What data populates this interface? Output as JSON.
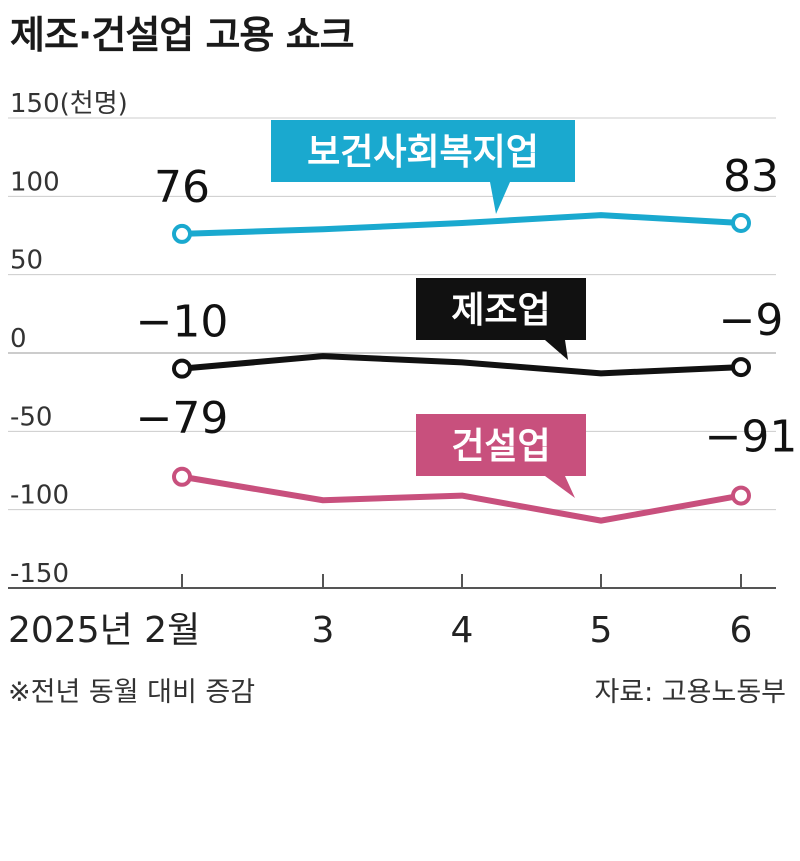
{
  "title": "제조·건설업 고용 쇼크",
  "footnote": "※전년 동월 대비 증감",
  "source": "자료: 고용노동부",
  "chart_data": {
    "type": "line",
    "title": "제조·건설업 고용 쇼크",
    "x": [
      "2025년 2월",
      "3",
      "4",
      "5",
      "6"
    ],
    "ylabel": "(천명)",
    "ylim": [
      -150,
      150
    ],
    "yticks": [
      -150,
      -100,
      -50,
      0,
      50,
      100,
      150
    ],
    "ytick_labels": [
      "-150",
      "-100",
      "-50",
      "0",
      "50",
      "100",
      "150(천명)"
    ],
    "grid": true,
    "series": [
      {
        "name": "보건사회복지업",
        "color": "#1aa9cf",
        "values": [
          76,
          79,
          83,
          88,
          83
        ],
        "end_labels": [
          "76",
          "83"
        ]
      },
      {
        "name": "제조업",
        "color": "#111111",
        "values": [
          -10,
          -2,
          -6,
          -13,
          -9
        ],
        "end_labels": [
          "−10",
          "−9"
        ]
      },
      {
        "name": "건설업",
        "color": "#c8507d",
        "values": [
          -79,
          -94,
          -91,
          -107,
          -91
        ],
        "end_labels": [
          "−79",
          "−91"
        ]
      }
    ]
  }
}
